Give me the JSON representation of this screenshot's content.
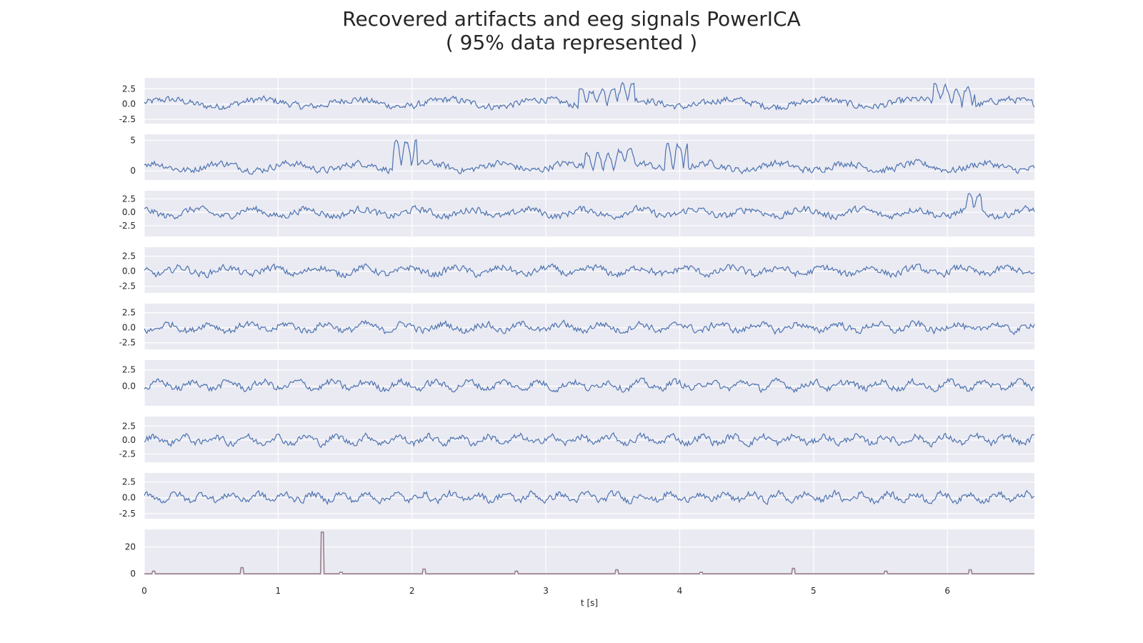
{
  "chart_data": {
    "type": "line",
    "title": "Recovered artifacts and eeg signals PowerICA",
    "subtitle": "( 95% data represented )",
    "xlabel": "t [s]",
    "xlim": [
      0,
      6.65
    ],
    "x_ticks": [
      "0",
      "1",
      "2",
      "3",
      "4",
      "5",
      "6"
    ],
    "grid": true,
    "colors": {
      "signal": "#4c72b0",
      "marker": "#9a7f8a",
      "panel_bg": "#eaeaf2",
      "grid": "#ffffff"
    },
    "series": [
      {
        "ylim": [
          -3.2,
          4.3
        ],
        "y_ticks": [
          "2.5",
          "0.0",
          "-2.5"
        ],
        "y_tick_values": [
          2.5,
          0,
          -2.5
        ],
        "bursts": [
          [
            3.3,
            3.6,
            2.8
          ],
          [
            5.95,
            6.15,
            3.0
          ]
        ]
      },
      {
        "ylim": [
          -1.5,
          6.0
        ],
        "y_ticks": [
          "5",
          "0"
        ],
        "y_tick_values": [
          5,
          0
        ],
        "bursts": [
          [
            1.92,
            1.98,
            4.5
          ],
          [
            3.35,
            3.6,
            2.5
          ],
          [
            3.95,
            4.0,
            4.0
          ]
        ]
      },
      {
        "ylim": [
          -4.5,
          4.0
        ],
        "y_ticks": [
          "2.5",
          "0.0",
          "-2.5"
        ],
        "y_tick_values": [
          2.5,
          0,
          -2.5
        ],
        "bursts": [
          [
            6.2,
            6.2,
            2.5
          ]
        ]
      },
      {
        "ylim": [
          -3.6,
          4.0
        ],
        "y_ticks": [
          "2.5",
          "0.0",
          "-2.5"
        ],
        "y_tick_values": [
          2.5,
          0,
          -2.5
        ],
        "bursts": []
      },
      {
        "ylim": [
          -3.6,
          4.0
        ],
        "y_ticks": [
          "2.5",
          "0.0",
          "-2.5"
        ],
        "y_tick_values": [
          2.5,
          0,
          -2.5
        ],
        "bursts": []
      },
      {
        "ylim": [
          -3.0,
          4.0
        ],
        "y_ticks": [
          "2.5",
          "0.0"
        ],
        "y_tick_values": [
          2.5,
          0
        ],
        "bursts": []
      },
      {
        "ylim": [
          -4.0,
          4.2
        ],
        "y_ticks": [
          "2.5",
          "0.0",
          "-2.5"
        ],
        "y_tick_values": [
          2.5,
          0,
          -2.5
        ],
        "bursts": []
      },
      {
        "ylim": [
          -3.3,
          3.9
        ],
        "y_ticks": [
          "2.5",
          "0.0",
          "-2.5"
        ],
        "y_tick_values": [
          2.5,
          0,
          -2.5
        ],
        "bursts": []
      },
      {
        "ylim": [
          -1,
          33
        ],
        "y_ticks": [
          "20",
          "0"
        ],
        "y_tick_values": [
          20,
          0
        ],
        "markers": [
          {
            "t": 0.07,
            "h": 2
          },
          {
            "t": 0.73,
            "h": 4.5
          },
          {
            "t": 1.33,
            "h": 31
          },
          {
            "t": 1.47,
            "h": 1.2
          },
          {
            "t": 2.09,
            "h": 3.5
          },
          {
            "t": 2.78,
            "h": 2
          },
          {
            "t": 3.53,
            "h": 3
          },
          {
            "t": 4.16,
            "h": 1.2
          },
          {
            "t": 4.85,
            "h": 4
          },
          {
            "t": 5.54,
            "h": 2
          },
          {
            "t": 6.17,
            "h": 3
          }
        ]
      }
    ]
  }
}
